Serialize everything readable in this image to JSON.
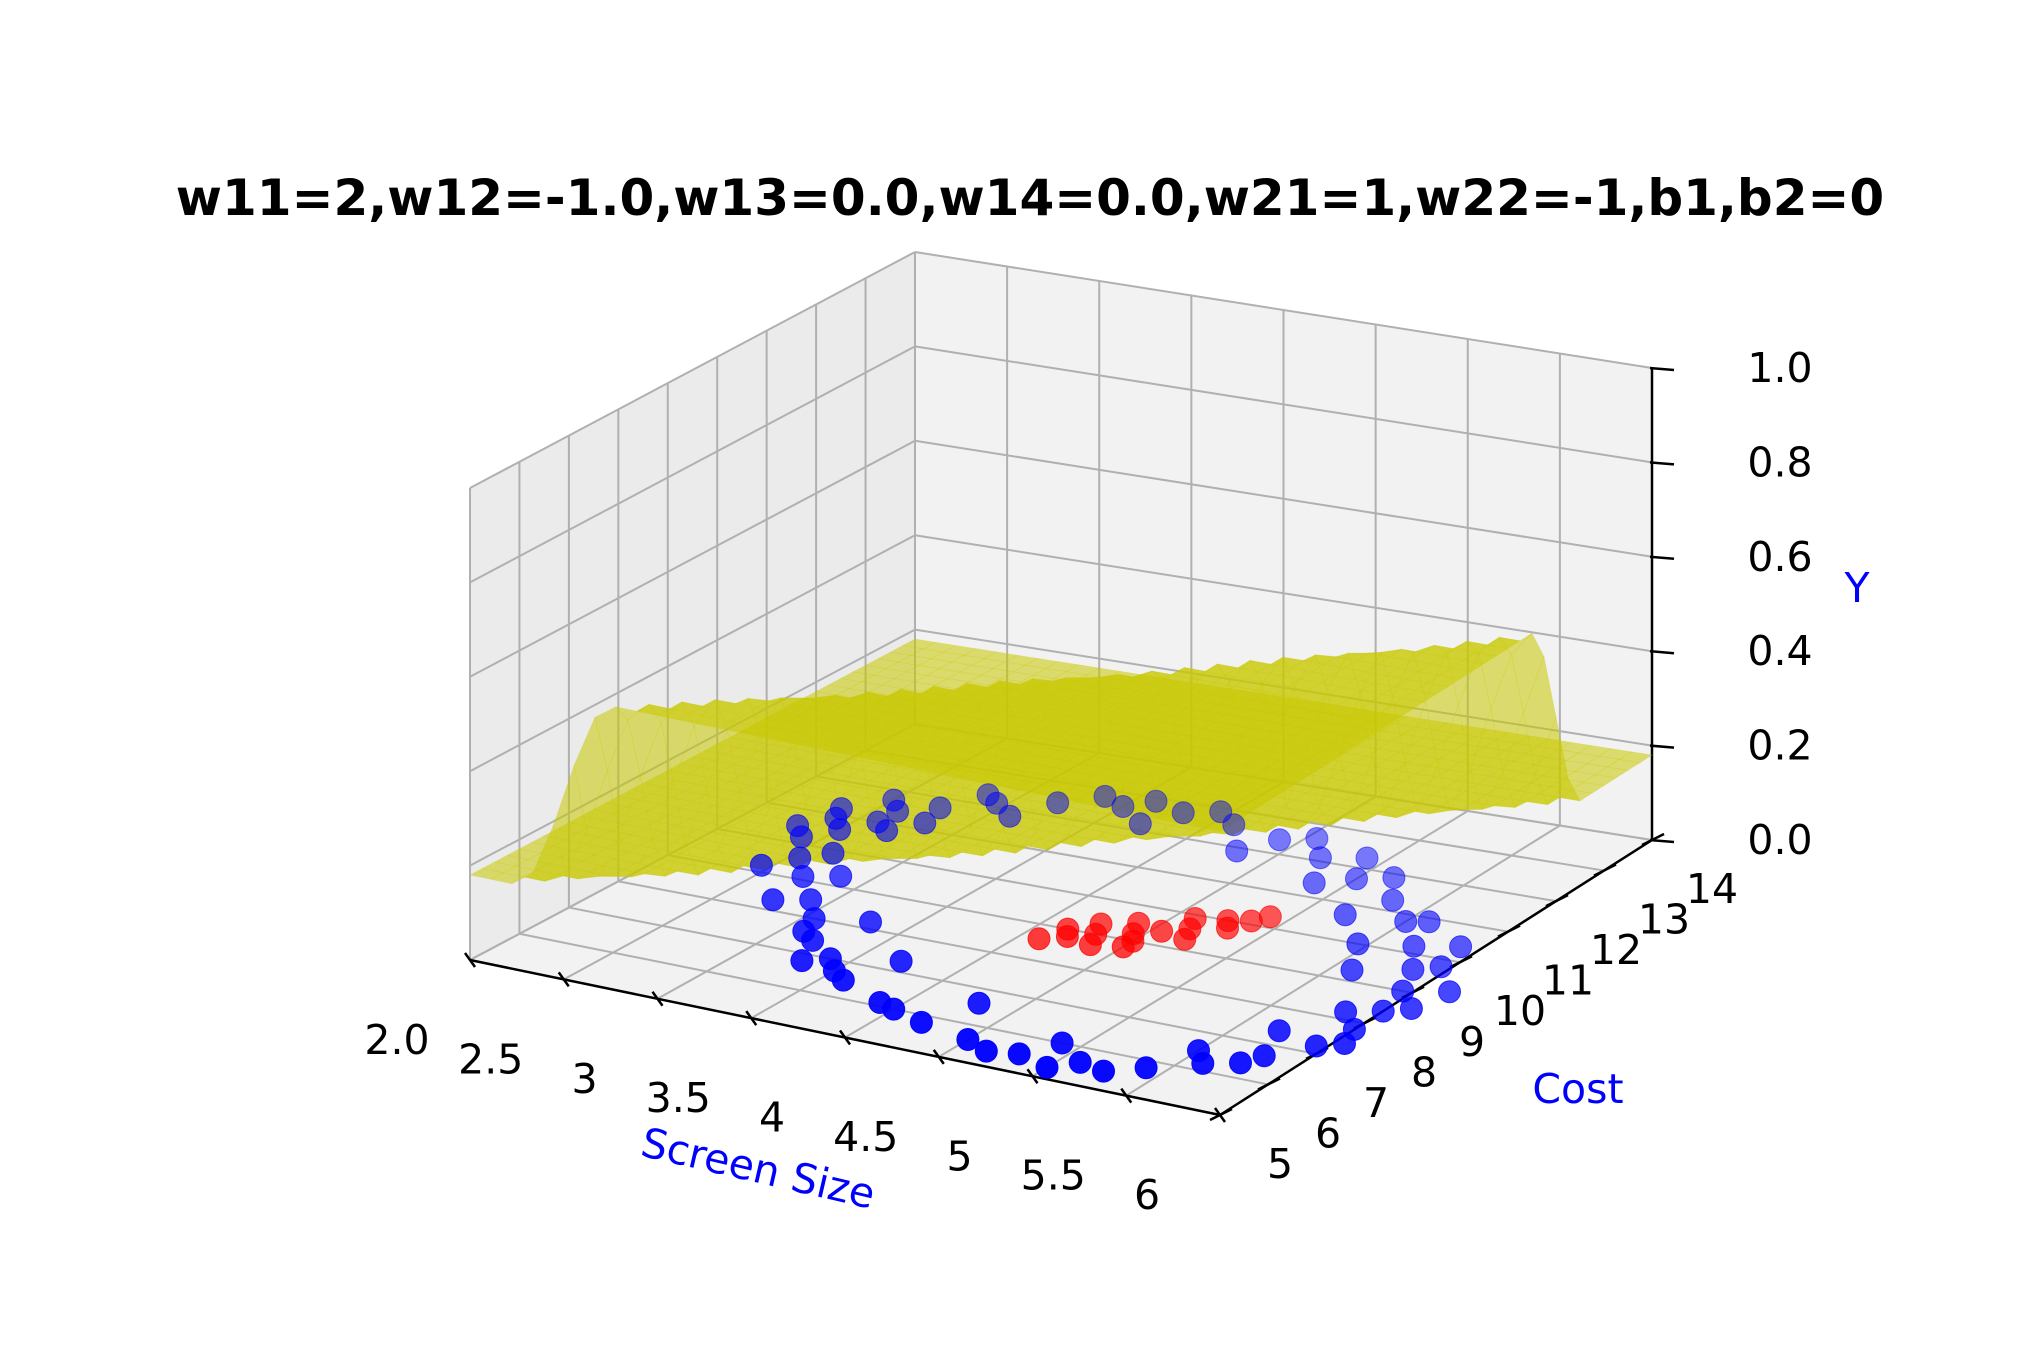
{
  "chart_data": {
    "type": "scatter3d",
    "title": "w11=2,w12=-1.0,w13=0.0,w14=0.0,w21=1,w22=-1,b1,b2=0",
    "xlabel": "Screen Size",
    "ylabel": "Cost",
    "zlabel": "Y",
    "label_color": "#0000ff",
    "xlim": [
      2.0,
      6.0
    ],
    "ylim": [
      5,
      14
    ],
    "zlim": [
      0.0,
      1.0
    ],
    "x_ticks": [
      {
        "value": 2.0,
        "label": "2.0"
      },
      {
        "value": 2.5,
        "label": "2.5"
      },
      {
        "value": 3.0,
        "label": "3"
      },
      {
        "value": 3.5,
        "label": "3.5"
      },
      {
        "value": 4.0,
        "label": "4"
      },
      {
        "value": 4.5,
        "label": "4.5"
      },
      {
        "value": 5.0,
        "label": "5"
      },
      {
        "value": 5.5,
        "label": "5.5"
      },
      {
        "value": 6.0,
        "label": "6"
      }
    ],
    "y_ticks": [
      {
        "value": 5,
        "label": "5"
      },
      {
        "value": 6,
        "label": "6"
      },
      {
        "value": 7,
        "label": "7"
      },
      {
        "value": 8,
        "label": "8"
      },
      {
        "value": 9,
        "label": "9"
      },
      {
        "value": 10,
        "label": "10"
      },
      {
        "value": 11,
        "label": "11"
      },
      {
        "value": 12,
        "label": "12"
      },
      {
        "value": 13,
        "label": "13"
      },
      {
        "value": 14,
        "label": "14"
      }
    ],
    "z_ticks": [
      {
        "value": 0.0,
        "label": "0.0"
      },
      {
        "value": 0.2,
        "label": "0.2"
      },
      {
        "value": 0.4,
        "label": "0.4"
      },
      {
        "value": 0.6,
        "label": "0.6"
      },
      {
        "value": 0.8,
        "label": "0.8"
      },
      {
        "value": 1.0,
        "label": "1.0"
      }
    ],
    "grid": true,
    "surface": {
      "color": "#c8c800",
      "opacity": 0.55,
      "z_low": 0.18,
      "z_high": 0.6,
      "transition_boundary": "x - y/2 = 0",
      "transition_width": 0.25
    },
    "series": [
      {
        "color": "#0000ff",
        "points": [
          [
            2.6,
            11.0
          ],
          [
            2.5,
            10.6
          ],
          [
            2.4,
            10.2
          ],
          [
            2.55,
            9.6
          ],
          [
            2.7,
            9.1
          ],
          [
            2.9,
            8.5
          ],
          [
            3.05,
            8.0
          ],
          [
            3.2,
            7.4
          ],
          [
            3.4,
            7.0
          ],
          [
            3.6,
            6.5
          ],
          [
            3.9,
            6.1
          ],
          [
            4.2,
            5.8
          ],
          [
            4.5,
            5.6
          ],
          [
            4.8,
            5.5
          ],
          [
            5.1,
            5.6
          ],
          [
            5.4,
            5.8
          ],
          [
            5.6,
            6.2
          ],
          [
            5.8,
            6.7
          ],
          [
            5.95,
            7.2
          ],
          [
            6.0,
            7.8
          ],
          [
            6.0,
            8.4
          ],
          [
            5.95,
            9.0
          ],
          [
            5.85,
            9.6
          ],
          [
            5.7,
            10.2
          ],
          [
            5.5,
            10.8
          ],
          [
            5.3,
            11.3
          ],
          [
            5.0,
            11.7
          ],
          [
            4.7,
            12.1
          ],
          [
            4.4,
            12.4
          ],
          [
            4.1,
            12.6
          ],
          [
            3.8,
            12.7
          ],
          [
            3.5,
            12.6
          ],
          [
            3.2,
            12.4
          ],
          [
            2.95,
            12.1
          ],
          [
            2.75,
            11.7
          ],
          [
            2.6,
            11.4
          ],
          [
            2.3,
            10.5
          ],
          [
            2.45,
            9.2
          ],
          [
            2.75,
            8.3
          ],
          [
            3.1,
            7.6
          ],
          [
            3.5,
            6.7
          ],
          [
            4.0,
            6.0
          ],
          [
            4.65,
            5.4
          ],
          [
            5.25,
            5.5
          ],
          [
            5.75,
            6.4
          ],
          [
            6.05,
            7.4
          ],
          [
            6.1,
            8.6
          ],
          [
            5.95,
            9.8
          ],
          [
            5.6,
            10.9
          ],
          [
            5.15,
            11.9
          ],
          [
            4.55,
            12.6
          ],
          [
            3.95,
            12.9
          ],
          [
            3.35,
            12.8
          ],
          [
            2.85,
            12.3
          ],
          [
            2.5,
            11.7
          ],
          [
            2.35,
            11.2
          ],
          [
            2.7,
            10.8
          ],
          [
            2.65,
            9.9
          ],
          [
            2.85,
            9.3
          ],
          [
            3.3,
            8.2
          ],
          [
            3.7,
            7.3
          ],
          [
            4.3,
            6.6
          ],
          [
            4.9,
            6.0
          ],
          [
            5.5,
            6.5
          ],
          [
            5.7,
            7.4
          ],
          [
            5.85,
            8.2
          ],
          [
            5.6,
            9.3
          ],
          [
            5.45,
            10.0
          ],
          [
            5.2,
            10.7
          ],
          [
            4.85,
            11.4
          ],
          [
            4.3,
            11.9
          ],
          [
            3.7,
            12.2
          ],
          [
            3.1,
            11.8
          ],
          [
            2.8,
            11.2
          ],
          [
            2.4,
            10.9
          ],
          [
            3.6,
            12.9
          ],
          [
            4.9,
            12.3
          ],
          [
            5.9,
            10.4
          ],
          [
            6.15,
            9.2
          ],
          [
            5.0,
            5.3
          ],
          [
            3.3,
            6.8
          ]
        ]
      },
      {
        "color": "#ff0000",
        "points": [
          [
            4.1,
            8.6
          ],
          [
            4.2,
            8.8
          ],
          [
            4.3,
            9.0
          ],
          [
            4.35,
            8.7
          ],
          [
            4.45,
            9.2
          ],
          [
            4.5,
            9.0
          ],
          [
            4.55,
            9.4
          ],
          [
            4.65,
            9.6
          ],
          [
            4.7,
            9.3
          ],
          [
            4.8,
            9.8
          ],
          [
            4.85,
            10.1
          ],
          [
            4.9,
            10.3
          ],
          [
            4.25,
            9.3
          ],
          [
            4.4,
            9.5
          ],
          [
            4.6,
            9.9
          ],
          [
            4.15,
            9.0
          ],
          [
            4.5,
            8.8
          ],
          [
            4.75,
            10.0
          ]
        ]
      }
    ]
  }
}
